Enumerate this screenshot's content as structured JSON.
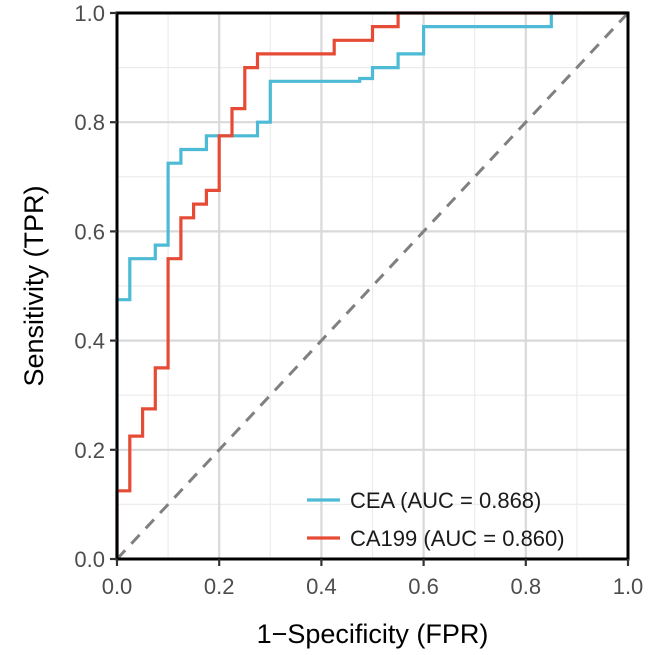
{
  "chart_data": {
    "type": "line",
    "title": "",
    "xlabel": "1−Specificity (FPR)",
    "ylabel": "Sensitivity (TPR)",
    "xlim": [
      0,
      1
    ],
    "ylim": [
      0,
      1
    ],
    "x_ticks": [
      "0.0",
      "0.2",
      "0.4",
      "0.6",
      "0.8",
      "1.0"
    ],
    "y_ticks": [
      "0.0",
      "0.2",
      "0.4",
      "0.6",
      "0.8",
      "1.0"
    ],
    "grid": true,
    "legend_position": "bottom-right",
    "reference_line": {
      "x": [
        0,
        1
      ],
      "y": [
        0,
        1
      ],
      "style": "dashed",
      "color": "#808080"
    },
    "series": [
      {
        "name": "CEA (AUC = 0.868)",
        "color": "#4DBBD5",
        "x": [
          0,
          0,
          0.025,
          0.025,
          0.075,
          0.075,
          0.1,
          0.1,
          0.125,
          0.125,
          0.175,
          0.175,
          0.275,
          0.275,
          0.3,
          0.3,
          0.475,
          0.475,
          0.5,
          0.5,
          0.55,
          0.55,
          0.6,
          0.6,
          0.85,
          0.85,
          1
        ],
        "y": [
          0,
          0.475,
          0.475,
          0.55,
          0.55,
          0.575,
          0.575,
          0.725,
          0.725,
          0.75,
          0.75,
          0.775,
          0.775,
          0.8,
          0.8,
          0.875,
          0.875,
          0.88,
          0.88,
          0.9,
          0.9,
          0.925,
          0.925,
          0.975,
          0.975,
          1,
          1
        ]
      },
      {
        "name": "CA199 (AUC = 0.860)",
        "color": "#E64B35",
        "x": [
          0,
          0,
          0.025,
          0.025,
          0.05,
          0.05,
          0.075,
          0.075,
          0.1,
          0.1,
          0.125,
          0.125,
          0.15,
          0.15,
          0.175,
          0.175,
          0.2,
          0.2,
          0.225,
          0.225,
          0.25,
          0.25,
          0.275,
          0.275,
          0.425,
          0.425,
          0.5,
          0.5,
          0.55,
          0.55,
          1
        ],
        "y": [
          0,
          0.125,
          0.125,
          0.225,
          0.225,
          0.275,
          0.275,
          0.35,
          0.35,
          0.55,
          0.55,
          0.625,
          0.625,
          0.65,
          0.65,
          0.675,
          0.675,
          0.775,
          0.775,
          0.825,
          0.825,
          0.9,
          0.9,
          0.925,
          0.925,
          0.95,
          0.95,
          0.975,
          0.975,
          1,
          1
        ]
      }
    ]
  }
}
